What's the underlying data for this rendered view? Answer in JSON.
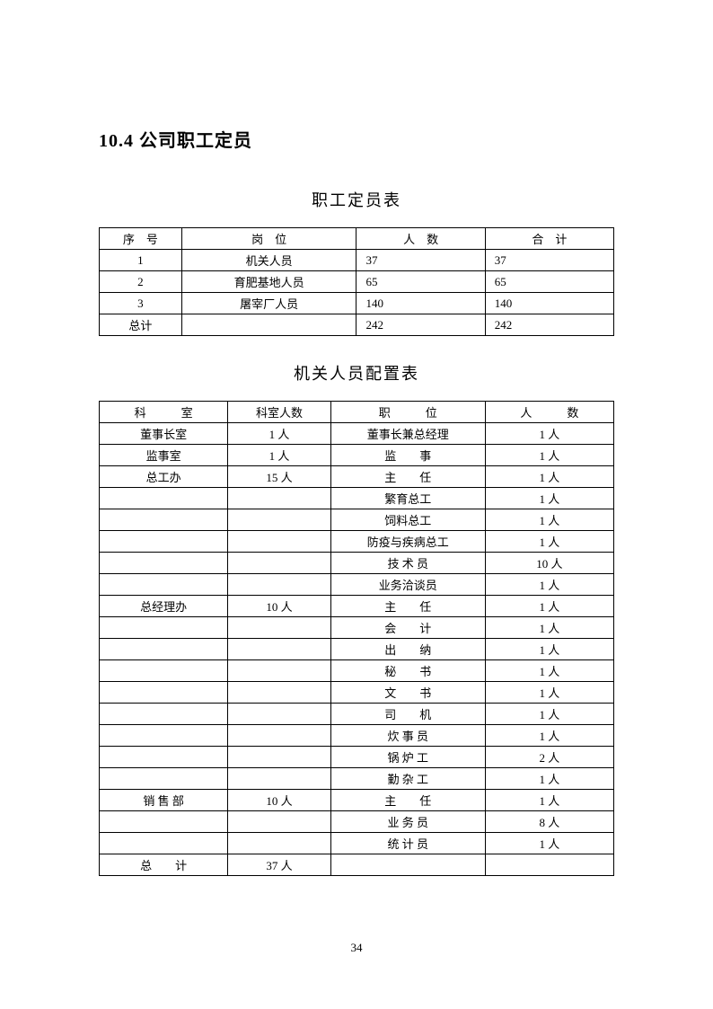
{
  "heading": "10.4 公司职工定员",
  "table1": {
    "title": "职工定员表",
    "headers": [
      "序　号",
      "岗　位",
      "人　数",
      "合　计"
    ],
    "rows": [
      [
        "1",
        "机关人员",
        "37",
        "37"
      ],
      [
        "2",
        "育肥基地人员",
        "65",
        "65"
      ],
      [
        "3",
        "屠宰厂人员",
        "140",
        "140"
      ],
      [
        "总计",
        "",
        "242",
        "242"
      ]
    ]
  },
  "table2": {
    "title": "机关人员配置表",
    "headers": [
      "科　　　室",
      "科室人数",
      "职　　　位",
      "人　　　数"
    ],
    "rows": [
      [
        "董事长室",
        "1 人",
        "董事长兼总经理",
        "1 人"
      ],
      [
        "监事室",
        "1 人",
        "监　　事",
        "1 人"
      ],
      [
        "总工办",
        "15 人",
        "主　　任",
        "1 人"
      ],
      [
        "",
        "",
        "繁育总工",
        "1 人"
      ],
      [
        "",
        "",
        "饲料总工",
        "1 人"
      ],
      [
        "",
        "",
        "防疫与疾病总工",
        "1 人"
      ],
      [
        "",
        "",
        "技 术 员",
        "10 人"
      ],
      [
        "",
        "",
        "业务洽谈员",
        "1 人"
      ],
      [
        "总经理办",
        "10 人",
        "主　　任",
        "1 人"
      ],
      [
        "",
        "",
        "会　　计",
        "1 人"
      ],
      [
        "",
        "",
        "出　　纳",
        "1 人"
      ],
      [
        "",
        "",
        "秘　　书",
        "1 人"
      ],
      [
        "",
        "",
        "文　　书",
        "1 人"
      ],
      [
        "",
        "",
        "司　　机",
        "1 人"
      ],
      [
        "",
        "",
        "炊 事 员",
        "1 人"
      ],
      [
        "",
        "",
        "锅 炉 工",
        "2 人"
      ],
      [
        "",
        "",
        "勤 杂 工",
        "1 人"
      ],
      [
        "销 售 部",
        "10 人",
        "主　　任",
        "1 人"
      ],
      [
        "",
        "",
        "业 务 员",
        "8 人"
      ],
      [
        "",
        "",
        "统 计 员",
        "1 人"
      ],
      [
        "总　　计",
        "37 人",
        "",
        ""
      ]
    ]
  },
  "page_number": "34"
}
